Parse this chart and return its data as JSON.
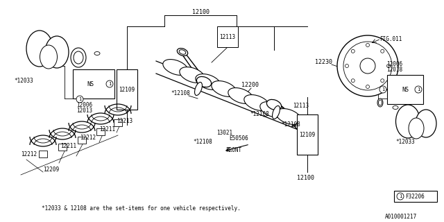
{
  "bg_color": "#ffffff",
  "text_color": "#000000",
  "footnote": "*12033 & 12108 are the set-items for one vehicle respectively.",
  "doc_id": "A010001217",
  "fig_ref": "F32206",
  "fig_011": "FIG.011",
  "crankshaft_label": "12200",
  "flywheel_label": "12230",
  "top_12100": "12100",
  "top_12113": "12113",
  "star_12108_list": [
    "*12108",
    "*12108",
    "*12108",
    "*12108"
  ],
  "e50506": "E50506",
  "t13021": "13021",
  "left_12109": "12109",
  "right_12109": "12109",
  "bottom_12100": "12100",
  "left_labels": [
    "12006",
    "12013"
  ],
  "left_star12033": "*12033",
  "right_labels": [
    "12006",
    "12018"
  ],
  "right_star12033": "*12033",
  "bearing_labels": [
    "12213",
    "12211",
    "12212",
    "12211",
    "12212",
    "12209"
  ],
  "l12113_right": "12113",
  "front_label": "FRONT"
}
